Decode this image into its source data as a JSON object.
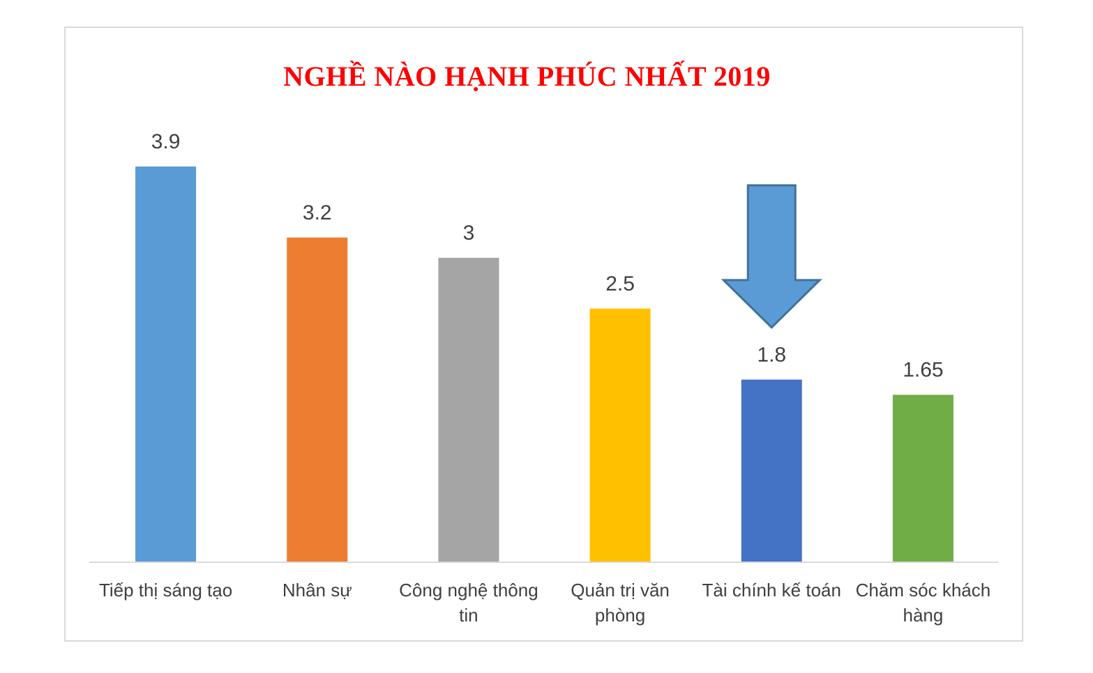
{
  "chart_data": {
    "type": "bar",
    "title": "NGHỀ NÀO HẠNH PHÚC NHẤT 2019",
    "categories": [
      [
        "Tiếp thị sáng tạo"
      ],
      [
        "Nhân sự"
      ],
      [
        "Công nghệ thông",
        "tin"
      ],
      [
        "Quản trị văn",
        "phòng"
      ],
      [
        "Tài chính kế toán"
      ],
      [
        "Chăm sóc khách",
        "hàng"
      ]
    ],
    "values": [
      3.9,
      3.2,
      3,
      2.5,
      1.8,
      1.65
    ],
    "data_labels": [
      "3.9",
      "3.2",
      "3",
      "2.5",
      "1.8",
      "1.65"
    ],
    "colors": [
      "#5b9bd5",
      "#ed7d31",
      "#a5a5a5",
      "#ffc000",
      "#4472c4",
      "#70ad47"
    ],
    "ylim": [
      0,
      3.9
    ],
    "grid": false,
    "legend": "none",
    "annotation": {
      "type": "down-arrow",
      "target_index": 4,
      "color": "#5b9bd5",
      "stroke": "#41719c"
    }
  }
}
